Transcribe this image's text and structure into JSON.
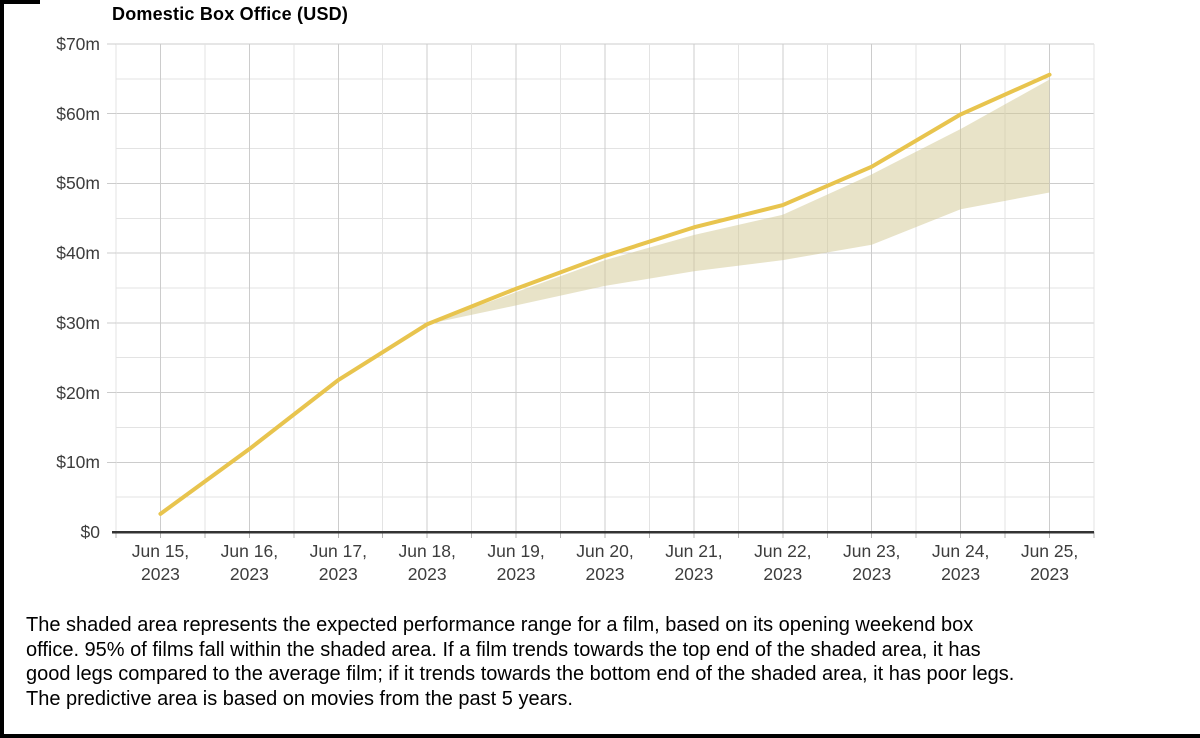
{
  "chart_data": {
    "type": "area",
    "title": "Domestic Box Office (USD)",
    "x": [
      "Jun 15, 2023",
      "Jun 16, 2023",
      "Jun 17, 2023",
      "Jun 18, 2023",
      "Jun 19, 2023",
      "Jun 20, 2023",
      "Jun 21, 2023",
      "Jun 22, 2023",
      "Jun 23, 2023",
      "Jun 24, 2023",
      "Jun 25, 2023"
    ],
    "unit": "USD millions",
    "ylim": [
      0,
      70
    ],
    "y_minor_step": 5,
    "grid": true,
    "legend": "none",
    "y_ticks": [
      {
        "value": 0,
        "label": "$0"
      },
      {
        "value": 10,
        "label": "$10m"
      },
      {
        "value": 20,
        "label": "$20m"
      },
      {
        "value": 30,
        "label": "$30m"
      },
      {
        "value": 40,
        "label": "$40m"
      },
      {
        "value": 50,
        "label": "$50m"
      },
      {
        "value": 60,
        "label": "$60m"
      },
      {
        "value": 70,
        "label": "$70m"
      }
    ],
    "series": [
      {
        "name": "actual-cumulative-gross",
        "type": "line",
        "values": [
          2.6,
          11.9,
          21.8,
          29.8,
          34.9,
          39.6,
          43.7,
          46.9,
          52.4,
          59.9,
          65.6
        ]
      },
      {
        "name": "expected-range-top",
        "type": "band-top",
        "values": [
          null,
          null,
          null,
          29.8,
          34.4,
          39.0,
          42.6,
          45.5,
          51.3,
          57.8,
          64.9
        ]
      },
      {
        "name": "expected-range-bottom",
        "type": "band-bottom",
        "values": [
          null,
          null,
          null,
          29.8,
          32.5,
          35.3,
          37.4,
          39.0,
          41.2,
          46.3,
          48.7
        ]
      }
    ]
  },
  "caption": {
    "text": "The shaded area represents the expected performance range for a film, based on its opening weekend box\noffice. 95% of films fall within the shaded area. If a film trends towards the top end of the shaded area, it has\ngood legs compared to the average film; if it trends towards the bottom end of the shaded area, it has poor legs.\nThe predictive area is based on movies from the past 5 years."
  },
  "colors": {
    "line": "#e8c44e",
    "band_fill": "#d2c892",
    "band_opacity": "0.5",
    "grid_major": "#cccccc",
    "grid_minor": "#e3e3e3",
    "axis": "#333333",
    "tick": "#b3b3b3",
    "label_text": "#3d3d3d",
    "frame": "#000000"
  }
}
